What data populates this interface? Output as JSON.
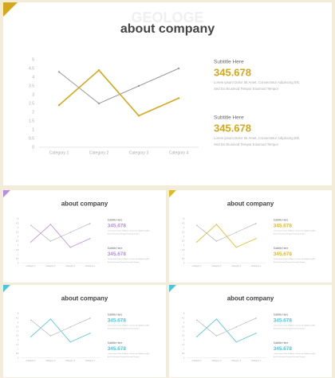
{
  "chart_data": [
    {
      "type": "line",
      "title": "about company",
      "watermark": "GEOLOGE",
      "accent": "#d4a81c",
      "categories": [
        "Category 1",
        "Category 2",
        "Category 3",
        "Category 4"
      ],
      "series": [
        {
          "color": "#9a9a9a",
          "values": [
            4.3,
            2.5,
            3.5,
            4.5
          ]
        },
        {
          "color": "#d4a81c",
          "values": [
            2.4,
            4.4,
            1.8,
            2.8
          ]
        }
      ],
      "ylim": [
        0,
        5
      ],
      "yticks": [
        0,
        0.5,
        1,
        1.5,
        2,
        2.5,
        3,
        3.5,
        4,
        4.5,
        5
      ],
      "blocks": [
        {
          "subtitle": "Subtitle Here",
          "value": 345.678,
          "text": [
            "Lorem ipsum Dolor Sit Amet, Consectetur Adipiscing Elit,",
            "Sed Do Eiusmod Tempor Eiusmod Tempor"
          ]
        },
        {
          "subtitle": "Subtitle Here",
          "value": 345.678,
          "text": [
            "Lorem ipsum Dolor Sit Amet, Consectetur Adipiscing Elit,",
            "Sed Do Eiusmod Tempor Eiusmod Tempor"
          ]
        }
      ]
    },
    {
      "type": "line",
      "title": "about company",
      "accent": "#b48ee0",
      "categories": [
        "Category 1",
        "Category 2",
        "Category 3",
        "Category 4"
      ],
      "series": [
        {
          "color": "#9a9a9a",
          "values": [
            4.3,
            2.5,
            3.5,
            4.5
          ]
        },
        {
          "color": "#b48ee0",
          "values": [
            2.4,
            4.4,
            1.8,
            2.8
          ]
        }
      ],
      "ylim": [
        0,
        5
      ],
      "yticks": [
        0,
        0.5,
        1,
        1.5,
        2,
        2.5,
        3,
        3.5,
        4,
        4.5,
        5
      ],
      "blocks": [
        {
          "subtitle": "Subtitle Here",
          "value": 345.678,
          "text": [
            "Lorem ipsum Dolor Sit Amet, Consectetur Adipiscing Elit,",
            "Sed Do Eiusmod Tempor Eiusmod Tempor"
          ]
        },
        {
          "subtitle": "Subtitle Here",
          "value": 345.678,
          "text": [
            "Lorem ipsum Dolor Sit Amet, Consectetur Adipiscing Elit,",
            "Sed Do Eiusmod Tempor Eiusmod Tempor"
          ]
        }
      ]
    },
    {
      "type": "line",
      "title": "about company",
      "accent": "#e0b820",
      "categories": [
        "Category 1",
        "Category 2",
        "Category 3",
        "Category 4"
      ],
      "series": [
        {
          "color": "#9a9a9a",
          "values": [
            4.3,
            2.5,
            3.5,
            4.5
          ]
        },
        {
          "color": "#e0b820",
          "values": [
            2.4,
            4.4,
            1.8,
            2.8
          ]
        }
      ],
      "ylim": [
        0,
        5
      ],
      "yticks": [
        0,
        0.5,
        1,
        1.5,
        2,
        2.5,
        3,
        3.5,
        4,
        4.5,
        5
      ],
      "blocks": [
        {
          "subtitle": "Subtitle Here",
          "value": 345.678,
          "text": [
            "Lorem ipsum Dolor Sit Amet, Consectetur Adipiscing Elit,",
            "Sed Do Eiusmod Tempor Eiusmod Tempor"
          ]
        },
        {
          "subtitle": "Subtitle Here",
          "value": 345.678,
          "text": [
            "Lorem ipsum Dolor Sit Amet, Consectetur Adipiscing Elit,",
            "Sed Do Eiusmod Tempor Eiusmod Tempor"
          ]
        }
      ]
    },
    {
      "type": "line",
      "title": "about company",
      "accent": "#4cc4dc",
      "categories": [
        "Category 1",
        "Category 2",
        "Category 3",
        "Category 4"
      ],
      "series": [
        {
          "color": "#9a9a9a",
          "values": [
            4.3,
            2.5,
            3.5,
            4.5
          ]
        },
        {
          "color": "#4cc4dc",
          "values": [
            2.4,
            4.4,
            1.8,
            2.8
          ]
        }
      ],
      "ylim": [
        0,
        5
      ],
      "yticks": [
        0,
        0.5,
        1,
        1.5,
        2,
        2.5,
        3,
        3.5,
        4,
        4.5,
        5
      ],
      "blocks": [
        {
          "subtitle": "Subtitle Here",
          "value": 345.678,
          "text": [
            "Lorem ipsum Dolor Sit Amet, Consectetur Adipiscing Elit,",
            "Sed Do Eiusmod Tempor Eiusmod Tempor"
          ]
        },
        {
          "subtitle": "Subtitle Here",
          "value": 345.678,
          "text": [
            "Lorem ipsum Dolor Sit Amet, Consectetur Adipiscing Elit,",
            "Sed Do Eiusmod Tempor Eiusmod Tempor"
          ]
        }
      ]
    },
    {
      "type": "line",
      "title": "about company",
      "accent": "#4cc4dc",
      "categories": [
        "Category 1",
        "Category 2",
        "Category 3",
        "Category 4"
      ],
      "series": [
        {
          "color": "#9a9a9a",
          "values": [
            4.3,
            2.5,
            3.5,
            4.5
          ]
        },
        {
          "color": "#4cc4dc",
          "values": [
            2.4,
            4.4,
            1.8,
            2.8
          ]
        }
      ],
      "ylim": [
        0,
        5
      ],
      "yticks": [
        0,
        0.5,
        1,
        1.5,
        2,
        2.5,
        3,
        3.5,
        4,
        4.5,
        5
      ],
      "blocks": [
        {
          "subtitle": "Subtitle Here",
          "value": 345.678,
          "text": [
            "Lorem ipsum Dolor Sit Amet, Consectetur Adipiscing Elit,",
            "Sed Do Eiusmod Tempor Eiusmod Tempor"
          ]
        },
        {
          "subtitle": "Subtitle Here",
          "value": 345.678,
          "text": [
            "Lorem ipsum Dolor Sit Amet, Consectetur Adipiscing Elit,",
            "Sed Do Eiusmod Tempor Eiusmod Tempor"
          ]
        }
      ]
    }
  ]
}
